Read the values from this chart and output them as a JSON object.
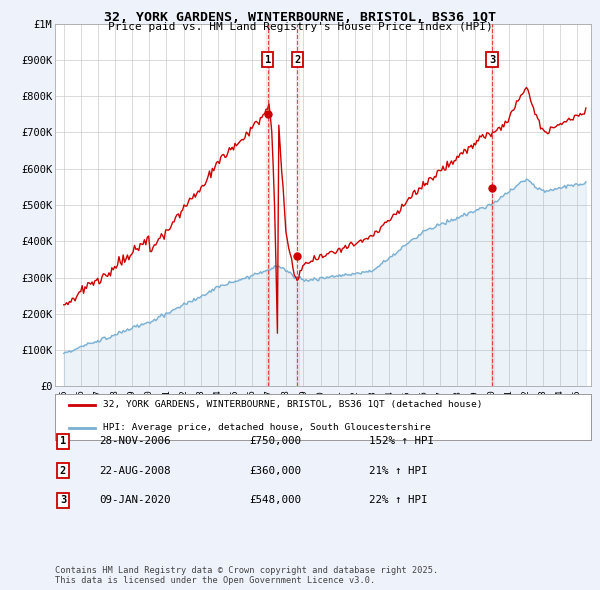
{
  "title_line1": "32, YORK GARDENS, WINTERBOURNE, BRISTOL, BS36 1QT",
  "title_line2": "Price paid vs. HM Land Registry's House Price Index (HPI)",
  "legend_line1": "32, YORK GARDENS, WINTERBOURNE, BRISTOL, BS36 1QT (detached house)",
  "legend_line2": "HPI: Average price, detached house, South Gloucestershire",
  "footer": "Contains HM Land Registry data © Crown copyright and database right 2025.\nThis data is licensed under the Open Government Licence v3.0.",
  "sale_color": "#cc0000",
  "hpi_color": "#7ab0d4",
  "background_color": "#eef2fb",
  "plot_bg_color": "#ffffff",
  "ylim": [
    0,
    1000000
  ],
  "yticks": [
    0,
    100000,
    200000,
    300000,
    400000,
    500000,
    600000,
    700000,
    800000,
    900000,
    1000000
  ],
  "ytick_labels": [
    "£0",
    "£100K",
    "£200K",
    "£300K",
    "£400K",
    "£500K",
    "£600K",
    "£700K",
    "£800K",
    "£900K",
    "£1M"
  ],
  "transactions": [
    {
      "label": "1",
      "date": "28-NOV-2006",
      "price": 750000,
      "pct": "152%",
      "x_year": 2006.91
    },
    {
      "label": "2",
      "date": "22-AUG-2008",
      "price": 360000,
      "pct": "21%",
      "x_year": 2008.64
    },
    {
      "label": "3",
      "date": "09-JAN-2020",
      "price": 548000,
      "pct": "22%",
      "x_year": 2020.03
    }
  ],
  "xlim": [
    1994.5,
    2025.8
  ],
  "xticks": [
    1995,
    1996,
    1997,
    1998,
    1999,
    2000,
    2001,
    2002,
    2003,
    2004,
    2005,
    2006,
    2007,
    2008,
    2009,
    2010,
    2011,
    2012,
    2013,
    2014,
    2015,
    2016,
    2017,
    2018,
    2019,
    2020,
    2021,
    2022,
    2023,
    2024,
    2025
  ]
}
